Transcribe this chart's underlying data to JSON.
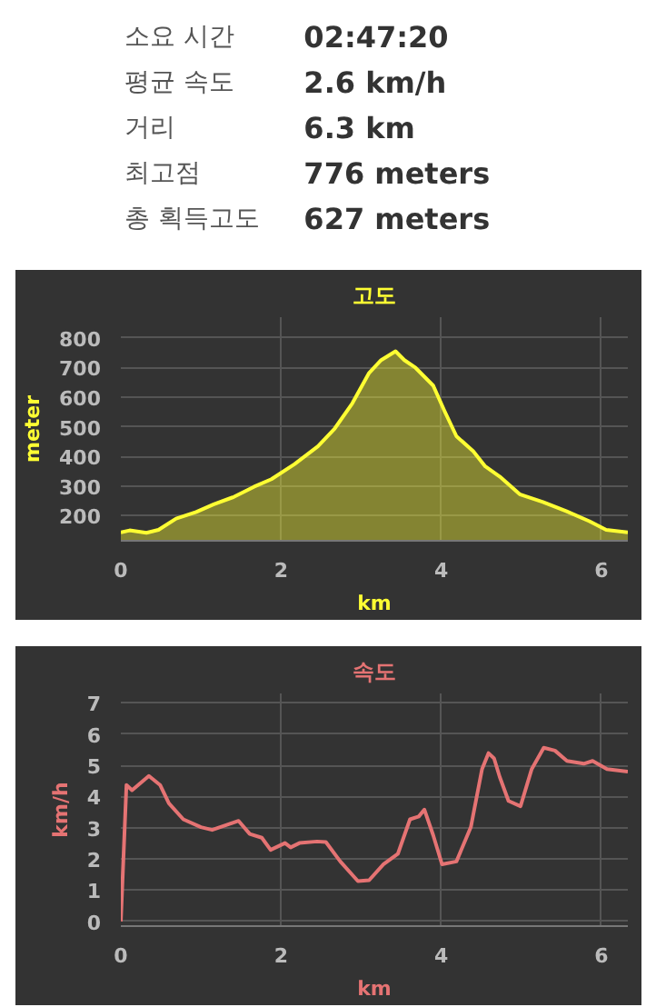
{
  "chart_data": [
    {
      "type": "other",
      "categories": [
        "소요 시간",
        "평균 속도",
        "거리",
        "최고점",
        "총 획득고도"
      ],
      "value_labels": [
        "02:47:20",
        "2.6 km/h",
        "6.3 km",
        "776 meters",
        "627 meters"
      ]
    },
    {
      "type": "area",
      "title": "고도",
      "xlabel": "km",
      "ylabel": "meter",
      "grid": true,
      "xlim": [
        0,
        6.33
      ],
      "ylim": [
        115,
        870
      ],
      "xticks": [
        0,
        2,
        4,
        6
      ],
      "yticks": [
        200,
        300,
        400,
        500,
        600,
        700,
        800
      ],
      "series": [
        {
          "color": "#ffff33",
          "x": [
            0,
            0.11,
            0.32,
            0.47,
            0.69,
            0.94,
            1.16,
            1.41,
            1.66,
            1.88,
            2.17,
            2.46,
            2.67,
            2.89,
            3.1,
            3.25,
            3.43,
            3.54,
            3.68,
            3.9,
            4.04,
            4.19,
            4.4,
            4.55,
            4.73,
            4.98,
            5.27,
            5.56,
            5.85,
            6.06,
            6.33
          ],
          "values": [
            143,
            150,
            142,
            152,
            190,
            212,
            238,
            263,
            297,
            323,
            374,
            434,
            494,
            579,
            682,
            725,
            755,
            725,
            699,
            639,
            554,
            468,
            417,
            366,
            332,
            272,
            246,
            215,
            181,
            152,
            143
          ]
        }
      ]
    },
    {
      "type": "line",
      "title": "속도",
      "xlabel": "km",
      "ylabel": "km/h",
      "grid": true,
      "xlim": [
        0,
        6.33
      ],
      "ylim": [
        -0.15,
        7.3
      ],
      "xticks": [
        0,
        2,
        4,
        6
      ],
      "yticks": [
        0,
        1,
        2,
        3,
        4,
        5,
        6,
        7
      ],
      "series": [
        {
          "color": "#e57373",
          "x": [
            0,
            0.07,
            0.14,
            0.35,
            0.49,
            0.6,
            0.78,
            1.0,
            1.14,
            1.33,
            1.47,
            1.61,
            1.76,
            1.87,
            2.05,
            2.12,
            2.23,
            2.45,
            2.56,
            2.74,
            2.96,
            3.1,
            3.28,
            3.46,
            3.61,
            3.72,
            3.79,
            3.9,
            4.01,
            4.19,
            4.37,
            4.51,
            4.59,
            4.66,
            4.73,
            4.84,
            4.99,
            5.13,
            5.28,
            5.42,
            5.57,
            5.78,
            5.89,
            6.07,
            6.33
          ],
          "values": [
            0,
            4.37,
            4.2,
            4.66,
            4.37,
            3.78,
            3.27,
            3.02,
            2.93,
            3.1,
            3.22,
            2.8,
            2.68,
            2.29,
            2.51,
            2.37,
            2.51,
            2.56,
            2.54,
            1.92,
            1.29,
            1.32,
            1.83,
            2.17,
            3.27,
            3.36,
            3.58,
            2.76,
            1.83,
            1.92,
            3.02,
            4.88,
            5.39,
            5.22,
            4.63,
            3.86,
            3.69,
            4.88,
            5.56,
            5.47,
            5.14,
            5.05,
            5.14,
            4.88,
            4.8
          ]
        }
      ]
    }
  ]
}
